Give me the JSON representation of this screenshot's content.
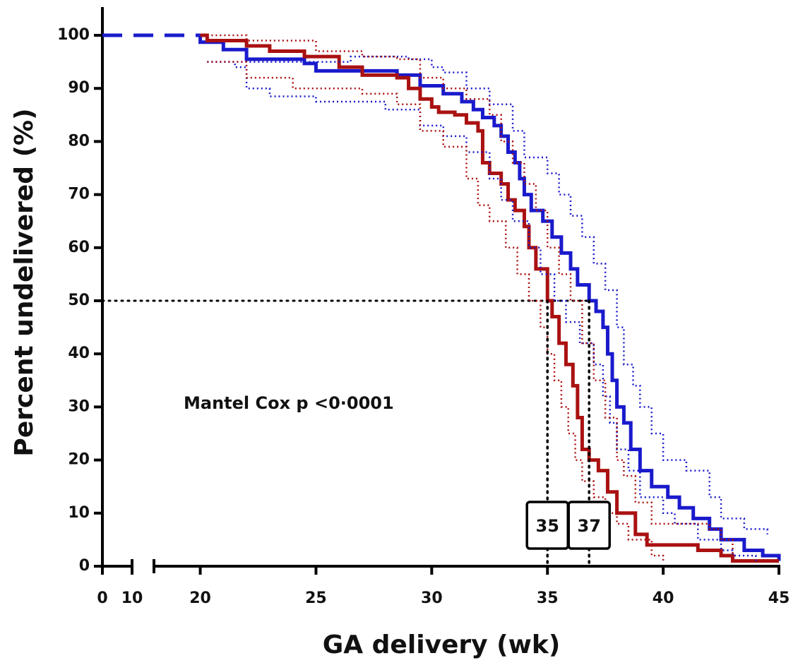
{
  "chart_data": {
    "type": "step",
    "xlabel": "GA delivery (wk)",
    "ylabel": "Percent undelivered (%)",
    "annotation": "Mantel Cox p <0·0001",
    "xlim": [
      0,
      45
    ],
    "xbreak": [
      10,
      18
    ],
    "ylim": [
      0,
      100
    ],
    "xticks": [
      0,
      10,
      20,
      25,
      30,
      35,
      40,
      45
    ],
    "yticks": [
      0,
      10,
      20,
      30,
      40,
      50,
      60,
      70,
      80,
      90,
      100
    ],
    "median_y": 50,
    "medians": [
      {
        "x": 35,
        "label": "35"
      },
      {
        "x": 36.8,
        "label": "37"
      }
    ],
    "series": [
      {
        "color": "#1a1acc",
        "style": "dashed",
        "x": [
          0,
          20
        ],
        "values": [
          100,
          100
        ]
      },
      {
        "color": "#1a1acc",
        "style": "solid",
        "x": [
          20,
          20,
          21,
          22,
          24.5,
          25,
          28.5,
          29.5,
          30.5,
          31.3,
          31.8,
          32.2,
          32.7,
          33,
          33.3,
          33.6,
          33.8,
          34,
          34.3,
          34.8,
          35.2,
          35.6,
          36,
          36.3,
          36.8,
          37.1,
          37.4,
          37.6,
          37.8,
          38,
          38.3,
          38.6,
          39,
          39.5,
          40.2,
          40.7,
          41.3,
          42,
          42.5,
          43.5,
          44.3,
          45
        ],
        "values": [
          100,
          98.7,
          97.3,
          95.5,
          94.7,
          93.3,
          92.5,
          90.5,
          89,
          87.5,
          86,
          84.5,
          83,
          81,
          78,
          76,
          73,
          70,
          67,
          65,
          62,
          59,
          56,
          53,
          50,
          48,
          45,
          40,
          35,
          30,
          27,
          22,
          18,
          15,
          13,
          11,
          9,
          7,
          5,
          3,
          2,
          1
        ]
      },
      {
        "color": "#aa1111",
        "style": "solid",
        "x": [
          20,
          20.3,
          22,
          23,
          24.5,
          26,
          27,
          28.5,
          29,
          29.5,
          30,
          30.3,
          31,
          31.5,
          32,
          32.2,
          32.5,
          33,
          33.3,
          33.6,
          34,
          34.2,
          34.5,
          35,
          35.2,
          35.5,
          35.8,
          36.1,
          36.3,
          36.5,
          36.8,
          37.2,
          37.6,
          38,
          38.8,
          39.3,
          41.5,
          42.5,
          43,
          45
        ],
        "values": [
          100,
          99,
          98,
          97,
          96,
          94,
          92.5,
          92,
          90,
          88,
          86.5,
          85.5,
          85,
          83.5,
          82,
          76,
          74,
          72,
          69,
          67,
          64,
          60,
          56,
          50,
          47,
          42,
          38,
          34,
          28,
          22,
          20,
          18,
          14,
          10,
          6,
          4,
          3,
          2,
          1,
          1
        ]
      },
      {
        "color": "#1a1acc",
        "style": "dotted",
        "x": [
          20.3,
          24.5,
          26.5,
          29,
          30,
          30.5,
          31.5,
          32.5,
          33.5,
          34,
          35,
          35.5,
          36,
          36.5,
          37,
          37.5,
          38,
          38.3,
          38.7,
          39,
          39.5,
          40,
          41,
          42,
          42.5,
          43.5,
          44.5
        ],
        "values": [
          95,
          95,
          96,
          95.5,
          94,
          93,
          90,
          87,
          82,
          77,
          74,
          70,
          66,
          62,
          57,
          52,
          45,
          38,
          34,
          30,
          25,
          20,
          18,
          13,
          9,
          7,
          6
        ]
      },
      {
        "color": "#1a1acc",
        "style": "dotted",
        "x": [
          20.3,
          21.5,
          22,
          23,
          25,
          28,
          29.5,
          30.5,
          31.5,
          32.5,
          33,
          33.5,
          34.2,
          34.7,
          35.3,
          35.8,
          36.4,
          37,
          37.4,
          37.7,
          38,
          38.5,
          39,
          40,
          40.5,
          41.5,
          42.5,
          43,
          44
        ],
        "values": [
          95,
          94,
          90,
          88.5,
          87.5,
          86,
          83,
          81,
          78,
          73,
          69,
          65,
          60,
          55,
          50,
          46,
          42,
          38,
          32,
          27,
          22,
          18,
          13,
          10,
          8,
          5,
          3,
          2,
          1
        ]
      },
      {
        "color": "#aa1111",
        "style": "dotted",
        "x": [
          20.3,
          22,
          25,
          27,
          28.5,
          29.5,
          30.5,
          31.5,
          32.5,
          33,
          33.5,
          34,
          34.5,
          35,
          35.5,
          36,
          36.5,
          37,
          37.5,
          38,
          38.3,
          38.8,
          39.5,
          41,
          42,
          42.5,
          43
        ],
        "values": [
          100,
          99,
          97,
          96,
          95.5,
          92,
          90,
          88,
          85,
          80,
          76,
          72,
          67,
          60,
          55,
          50,
          42,
          35,
          28,
          20,
          17,
          12,
          8,
          8,
          7,
          5,
          1
        ]
      },
      {
        "color": "#aa1111",
        "style": "dotted",
        "x": [
          20.3,
          22,
          24,
          27,
          28.5,
          29.5,
          30.5,
          31.5,
          32,
          32.5,
          33.2,
          33.7,
          34.2,
          34.7,
          35,
          35.3,
          35.6,
          35.9,
          36.2,
          36.5,
          37,
          37.5,
          38,
          38.5,
          39.5,
          40
        ],
        "values": [
          95,
          92,
          90,
          89,
          87,
          82,
          79,
          73,
          68,
          65,
          60,
          55,
          50,
          45,
          40,
          35,
          30,
          25,
          20,
          16,
          13,
          10,
          8,
          5,
          2,
          1
        ]
      }
    ]
  }
}
